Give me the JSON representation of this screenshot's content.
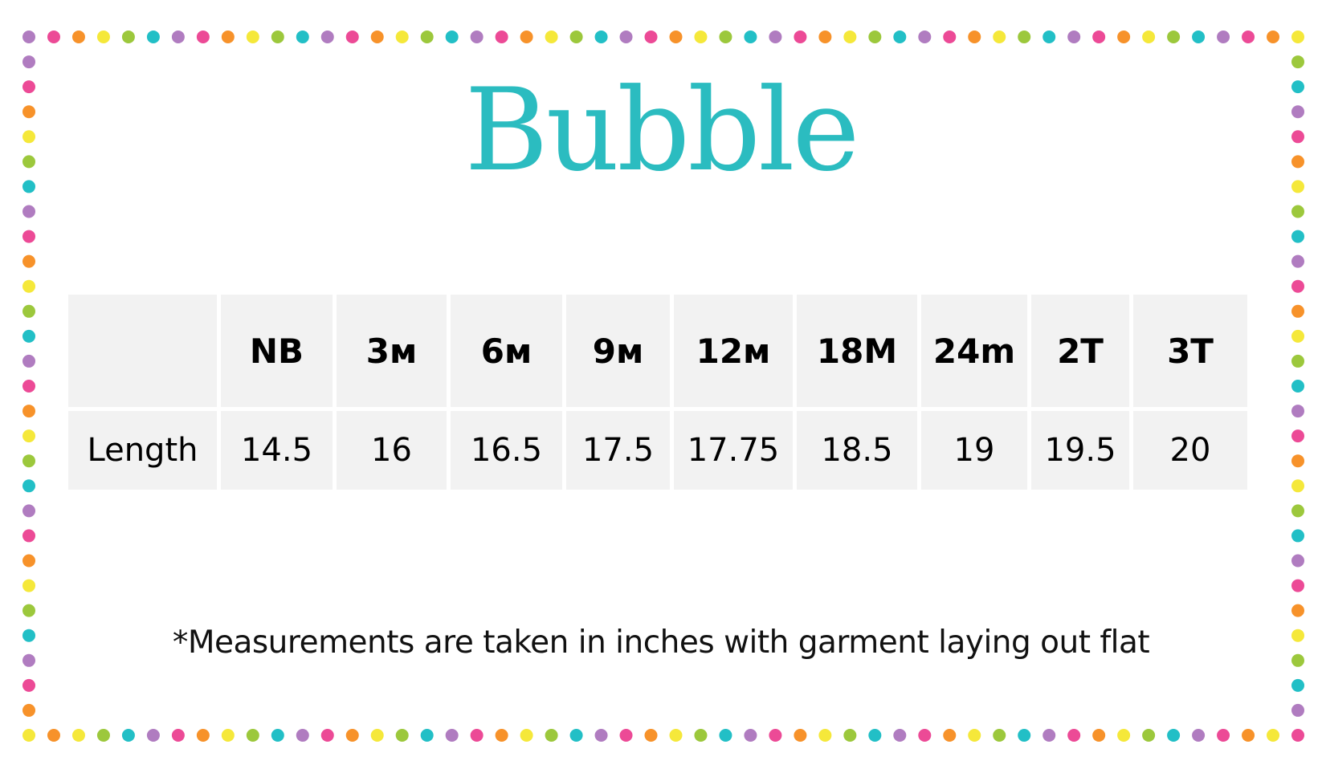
{
  "title": "Bubble",
  "table": {
    "header": [
      "",
      "NB",
      "3м",
      "6м",
      "9м",
      "12м",
      "18M",
      "24m",
      "2T",
      "3T"
    ],
    "rows": [
      {
        "label": "Length",
        "values": [
          "14.5",
          "16",
          "16.5",
          "17.5",
          "17.75",
          "18.5",
          "19",
          "19.5",
          "20"
        ]
      }
    ]
  },
  "note": "*Measurements are taken in inches with garment laying out flat",
  "colors": {
    "title": "#2bbcc0",
    "dots": [
      "#b07cc0",
      "#ec4a96",
      "#f7922a",
      "#f5e83a",
      "#9cc83c",
      "#22bfc6"
    ],
    "cell_bg": "#f2f2f2"
  }
}
